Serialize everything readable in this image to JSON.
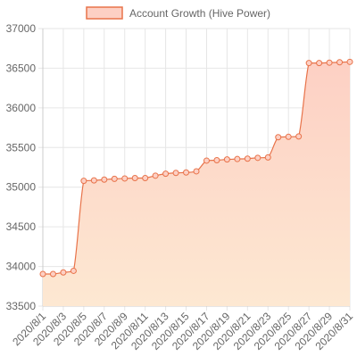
{
  "chart_data": {
    "type": "area",
    "legend": {
      "position": "top"
    },
    "series": [
      {
        "name": "Account Growth (Hive Power)",
        "color": "#e8734a",
        "fill_top": "#fdd0c4",
        "fill_bottom": "#fde8d2",
        "values": [
          33905,
          33905,
          33925,
          33945,
          35080,
          35085,
          35095,
          35105,
          35110,
          35115,
          35115,
          35145,
          35170,
          35180,
          35185,
          35200,
          35335,
          35340,
          35350,
          35355,
          35360,
          35370,
          35375,
          35630,
          35635,
          35640,
          36565,
          36565,
          36570,
          36575,
          36580
        ]
      }
    ],
    "x": [
      "2020/8/1",
      "2020/8/2",
      "2020/8/3",
      "2020/8/4",
      "2020/8/5",
      "2020/8/6",
      "2020/8/7",
      "2020/8/8",
      "2020/8/9",
      "2020/8/10",
      "2020/8/11",
      "2020/8/12",
      "2020/8/13",
      "2020/8/14",
      "2020/8/15",
      "2020/8/16",
      "2020/8/17",
      "2020/8/18",
      "2020/8/19",
      "2020/8/20",
      "2020/8/21",
      "2020/8/22",
      "2020/8/23",
      "2020/8/24",
      "2020/8/25",
      "2020/8/26",
      "2020/8/27",
      "2020/8/28",
      "2020/8/29",
      "2020/8/30",
      "2020/8/31"
    ],
    "x_tick_labels": [
      "2020/8/1",
      "2020/8/3",
      "2020/8/5",
      "2020/8/7",
      "2020/8/9",
      "2020/8/11",
      "2020/8/13",
      "2020/8/15",
      "2020/8/17",
      "2020/8/19",
      "2020/8/21",
      "2020/8/23",
      "2020/8/25",
      "2020/8/27",
      "2020/8/29",
      "2020/8/31"
    ],
    "y_ticks": [
      33500,
      34000,
      34500,
      35000,
      35500,
      36000,
      36500,
      37000
    ],
    "ylim": [
      33500,
      37000
    ],
    "grid": true
  }
}
